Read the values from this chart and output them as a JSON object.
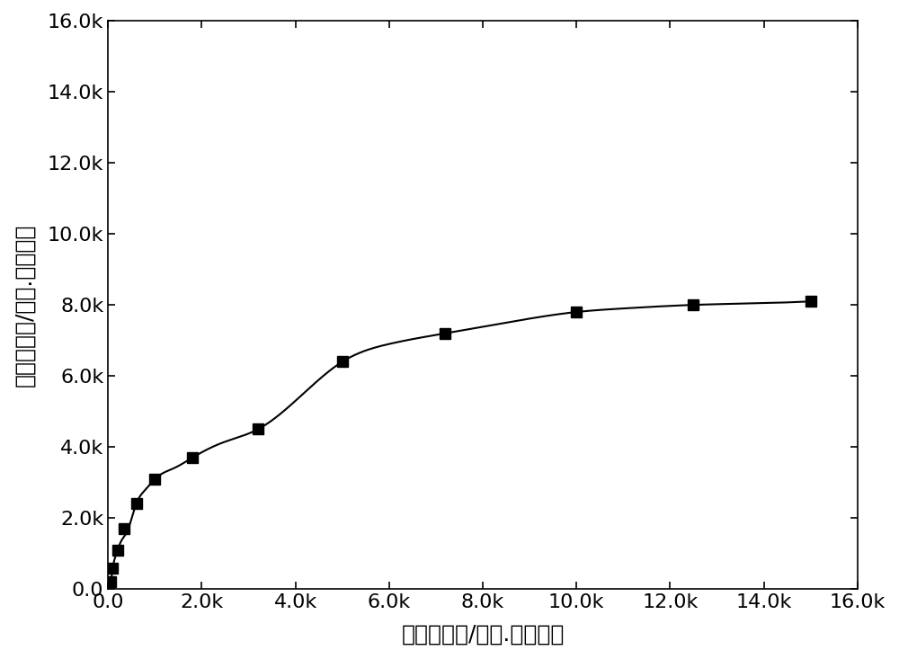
{
  "xlabel": "阻抗值实部/欧姆.平方厘米",
  "ylabel": "阻抗值虚部/欧姆.平方厘米",
  "xlim": [
    0,
    16000
  ],
  "ylim": [
    0,
    16000
  ],
  "xticks": [
    0,
    2000,
    4000,
    6000,
    8000,
    10000,
    12000,
    14000,
    16000
  ],
  "yticks": [
    0,
    2000,
    4000,
    6000,
    8000,
    10000,
    12000,
    14000,
    16000
  ],
  "xlabel_fontsize": 18,
  "ylabel_fontsize": 18,
  "tick_fontsize": 16,
  "marker_color": "black",
  "line_color": "black",
  "background_color": "white",
  "marker_x": [
    50,
    100,
    200,
    350,
    600,
    1000,
    1800,
    3200,
    5000,
    7200,
    10000,
    12500,
    15000
  ],
  "marker_y": [
    200,
    600,
    1100,
    1700,
    2400,
    3100,
    3700,
    4500,
    6400,
    7200,
    7800,
    8000,
    8100
  ],
  "dense_x": [
    2,
    4,
    6,
    10,
    15,
    20,
    30,
    50,
    80,
    100,
    140,
    200,
    300,
    400,
    600,
    800,
    1000,
    1400,
    1800,
    2400,
    3200,
    4000,
    5000,
    6000,
    7200,
    8500,
    10000,
    11000,
    12500,
    14000,
    15000
  ],
  "dense_y": [
    5,
    10,
    15,
    25,
    40,
    60,
    100,
    200,
    400,
    600,
    850,
    1100,
    1400,
    1600,
    2400,
    2800,
    3100,
    3400,
    3700,
    4100,
    4500,
    5300,
    6400,
    6900,
    7200,
    7500,
    7800,
    7900,
    8000,
    8050,
    8100
  ]
}
